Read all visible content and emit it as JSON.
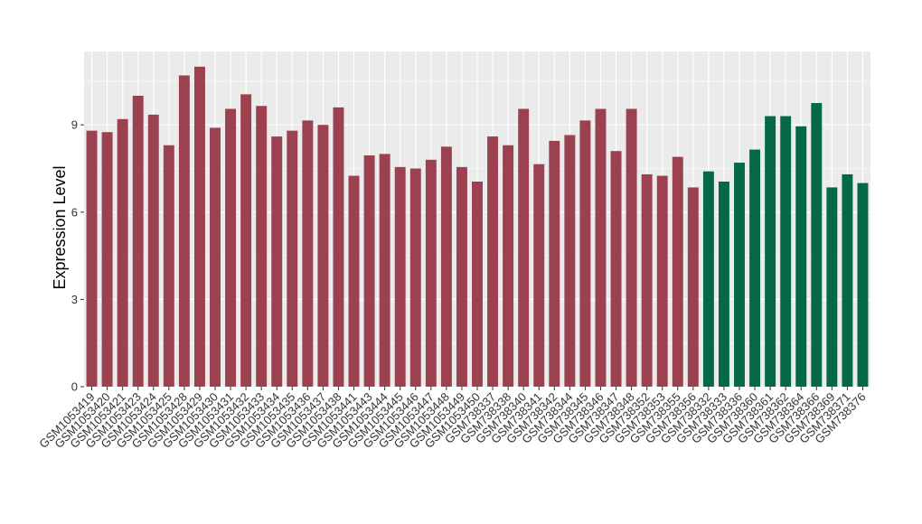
{
  "chart_data": {
    "type": "bar",
    "title": "",
    "xlabel": "",
    "ylabel": "Expression Level",
    "ylim": [
      0,
      11.5
    ],
    "yticks": [
      0,
      3,
      6,
      9
    ],
    "grid": true,
    "legend": "none",
    "colors": {
      "group1": "#9B4150",
      "group2": "#046A45",
      "panel": "#EBEBEB",
      "grid": "#FFFFFF"
    },
    "categories": [
      "GSM1053419",
      "GSM1053420",
      "GSM1053421",
      "GSM1053423",
      "GSM1053424",
      "GSM1053425",
      "GSM1053428",
      "GSM1053429",
      "GSM1053430",
      "GSM1053431",
      "GSM1053432",
      "GSM1053433",
      "GSM1053434",
      "GSM1053435",
      "GSM1053436",
      "GSM1053437",
      "GSM1053438",
      "GSM1053441",
      "GSM1053443",
      "GSM1053444",
      "GSM1053445",
      "GSM1053446",
      "GSM1053447",
      "GSM1053448",
      "GSM1053449",
      "GSM1053450",
      "GSM738337",
      "GSM738338",
      "GSM738340",
      "GSM738341",
      "GSM738342",
      "GSM738344",
      "GSM738345",
      "GSM738346",
      "GSM738347",
      "GSM738348",
      "GSM738352",
      "GSM738353",
      "GSM738355",
      "GSM738356",
      "GSM738332",
      "GSM738333",
      "GSM738336",
      "GSM738360",
      "GSM738361",
      "GSM738362",
      "GSM738364",
      "GSM738366",
      "GSM738369",
      "GSM738371",
      "GSM738376"
    ],
    "values": [
      8.8,
      8.75,
      9.2,
      10.0,
      9.35,
      8.3,
      10.7,
      11.0,
      8.9,
      9.55,
      10.05,
      9.65,
      8.6,
      8.8,
      9.15,
      9.0,
      9.6,
      7.25,
      7.95,
      8.0,
      7.55,
      7.5,
      7.8,
      8.25,
      7.55,
      7.05,
      8.6,
      8.3,
      9.55,
      7.65,
      8.45,
      8.65,
      9.15,
      9.55,
      8.1,
      9.55,
      7.3,
      7.25,
      7.9,
      6.85,
      7.4,
      7.05,
      7.7,
      8.15,
      9.3,
      9.3,
      8.95,
      9.75,
      6.85,
      7.3,
      7.0
    ],
    "groups": [
      1,
      1,
      1,
      1,
      1,
      1,
      1,
      1,
      1,
      1,
      1,
      1,
      1,
      1,
      1,
      1,
      1,
      1,
      1,
      1,
      1,
      1,
      1,
      1,
      1,
      1,
      1,
      1,
      1,
      1,
      1,
      1,
      1,
      1,
      1,
      1,
      1,
      1,
      1,
      1,
      2,
      2,
      2,
      2,
      2,
      2,
      2,
      2,
      2,
      2,
      2
    ]
  }
}
